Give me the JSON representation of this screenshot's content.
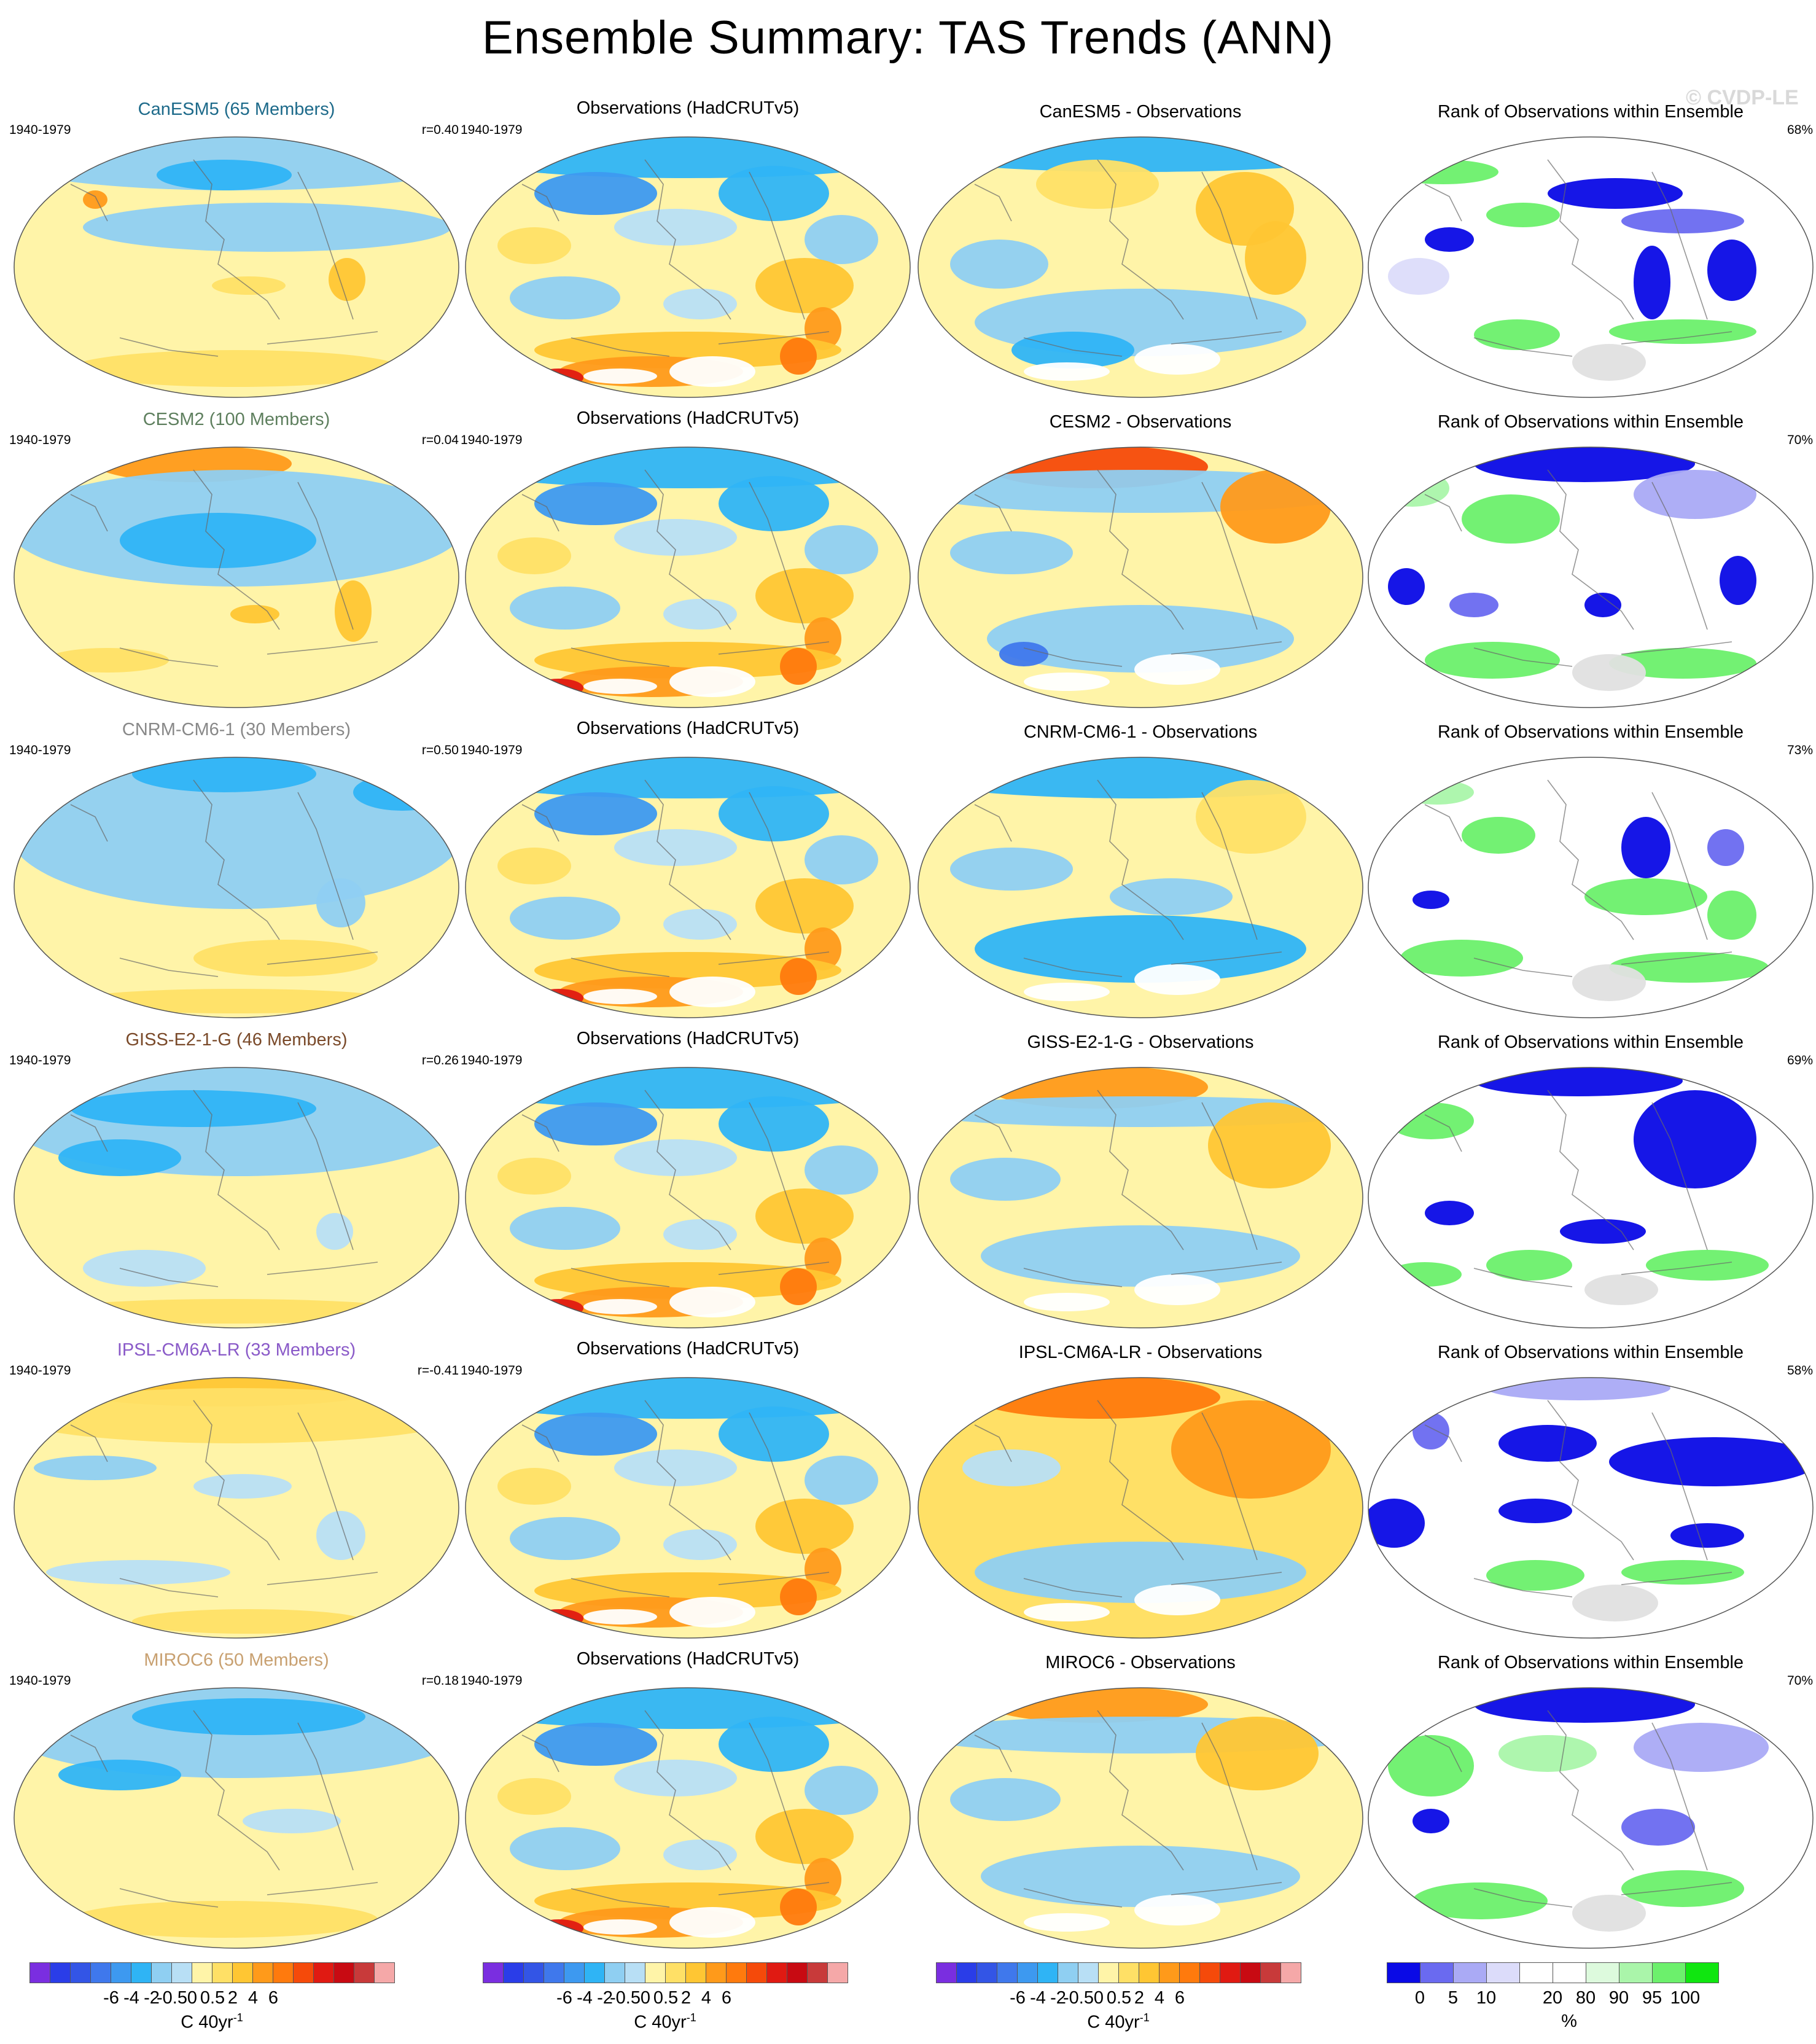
{
  "title": "Ensemble Summary: TAS Trends (ANN)",
  "watermark": "© CVDP-LE",
  "period": "1940-1979",
  "obs_title": "Observations (HadCRUTv5)",
  "rank_title": "Rank of Observations within Ensemble",
  "rows": [
    {
      "model_title": "CanESM5 (65 Members)",
      "model_color": "#1d6a8a",
      "r": "r=0.40",
      "diff_title": "CanESM5 - Observations",
      "rank_pct": "68%",
      "model_pattern": "canesm5",
      "diff_pattern": "diff1",
      "rank_pattern": "rank1"
    },
    {
      "model_title": "CESM2 (100 Members)",
      "model_color": "#5e7f5e",
      "r": "r=0.04",
      "diff_title": "CESM2 - Observations",
      "rank_pct": "70%",
      "model_pattern": "cesm2",
      "diff_pattern": "diff2",
      "rank_pattern": "rank2"
    },
    {
      "model_title": "CNRM-CM6-1 (30 Members)",
      "model_color": "#888888",
      "r": "r=0.50",
      "diff_title": "CNRM-CM6-1 - Observations",
      "rank_pct": "73%",
      "model_pattern": "cnrm",
      "diff_pattern": "diff3",
      "rank_pattern": "rank3"
    },
    {
      "model_title": "GISS-E2-1-G (46 Members)",
      "model_color": "#7a4a2a",
      "r": "r=0.26",
      "diff_title": "GISS-E2-1-G - Observations",
      "rank_pct": "69%",
      "model_pattern": "giss",
      "diff_pattern": "diff4",
      "rank_pattern": "rank4"
    },
    {
      "model_title": "IPSL-CM6A-LR (33 Members)",
      "model_color": "#8a5ac8",
      "r": "r=-0.41",
      "diff_title": "IPSL-CM6A-LR - Observations",
      "rank_pct": "58%",
      "model_pattern": "ipsl",
      "diff_pattern": "diff5",
      "rank_pattern": "rank5"
    },
    {
      "model_title": "MIROC6 (50 Members)",
      "model_color": "#c8a070",
      "r": "r=0.18",
      "diff_title": "MIROC6 - Observations",
      "rank_pct": "70%",
      "model_pattern": "miroc",
      "diff_pattern": "diff6",
      "rank_pattern": "rank6"
    }
  ],
  "colors": {
    "trend_scale": [
      "#7a2ee0",
      "#2a3de8",
      "#3355e6",
      "#3f78ec",
      "#3d99f0",
      "#2fb4f5",
      "#8fcff2",
      "#b8dff5",
      "#fff4a8",
      "#ffe066",
      "#ffc633",
      "#ff9a1a",
      "#ff7a0d",
      "#f54a0a",
      "#e01a12",
      "#c80a12",
      "#c83a3a",
      "#f5a8a8"
    ],
    "rank_scale": [
      "#0a0ae6",
      "#6a6af0",
      "#aaaaf5",
      "#dcdcfa",
      "#ffffff",
      "#ffffff",
      "#ddfadd",
      "#aaf5aa",
      "#6cf06c",
      "#10e610"
    ],
    "missing": "#e0e0e0"
  },
  "trend_colorbar": {
    "ticks": [
      "-6",
      "-4",
      "-2",
      "-0.5",
      "0",
      "0.5",
      "2",
      "4",
      "6"
    ],
    "unit_text": "C 40yr",
    "unit_sup": "-1"
  },
  "rank_colorbar": {
    "ticks": [
      "0",
      "5",
      "10",
      "20",
      "80",
      "90",
      "95",
      "100"
    ],
    "unit_text": "%"
  }
}
